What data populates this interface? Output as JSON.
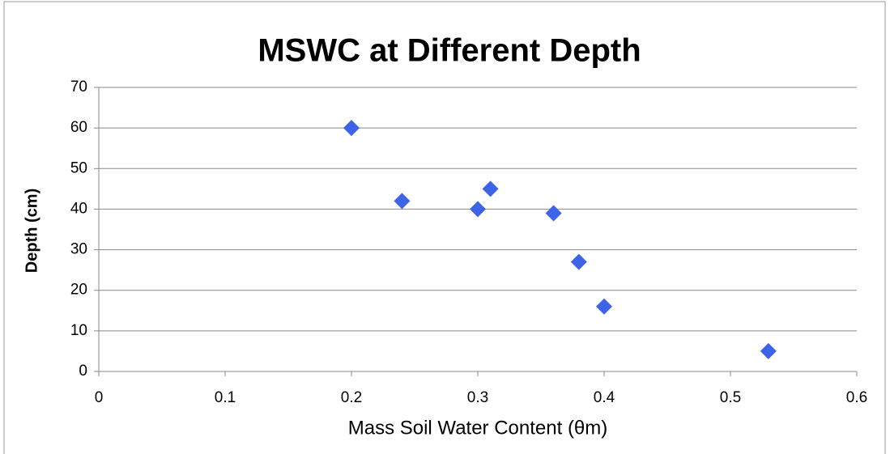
{
  "chart_data": {
    "type": "scatter",
    "title": "MSWC at Different Depth",
    "x_label": "Mass Soil Water Content (θm)",
    "y_label": "Depth (cm)",
    "x": [
      0.2,
      0.24,
      0.3,
      0.31,
      0.36,
      0.38,
      0.4,
      0.53
    ],
    "values": [
      60,
      42,
      40,
      45,
      39,
      27,
      16,
      5
    ],
    "color": "#3d63e6",
    "xlim": [
      0,
      0.6
    ],
    "xticks": [
      0,
      0.1,
      0.2,
      0.3,
      0.4,
      0.5,
      0.6
    ],
    "ylim": [
      0,
      70
    ],
    "yticks": [
      0,
      10,
      20,
      30,
      40,
      50,
      60,
      70
    ],
    "grid": true
  }
}
